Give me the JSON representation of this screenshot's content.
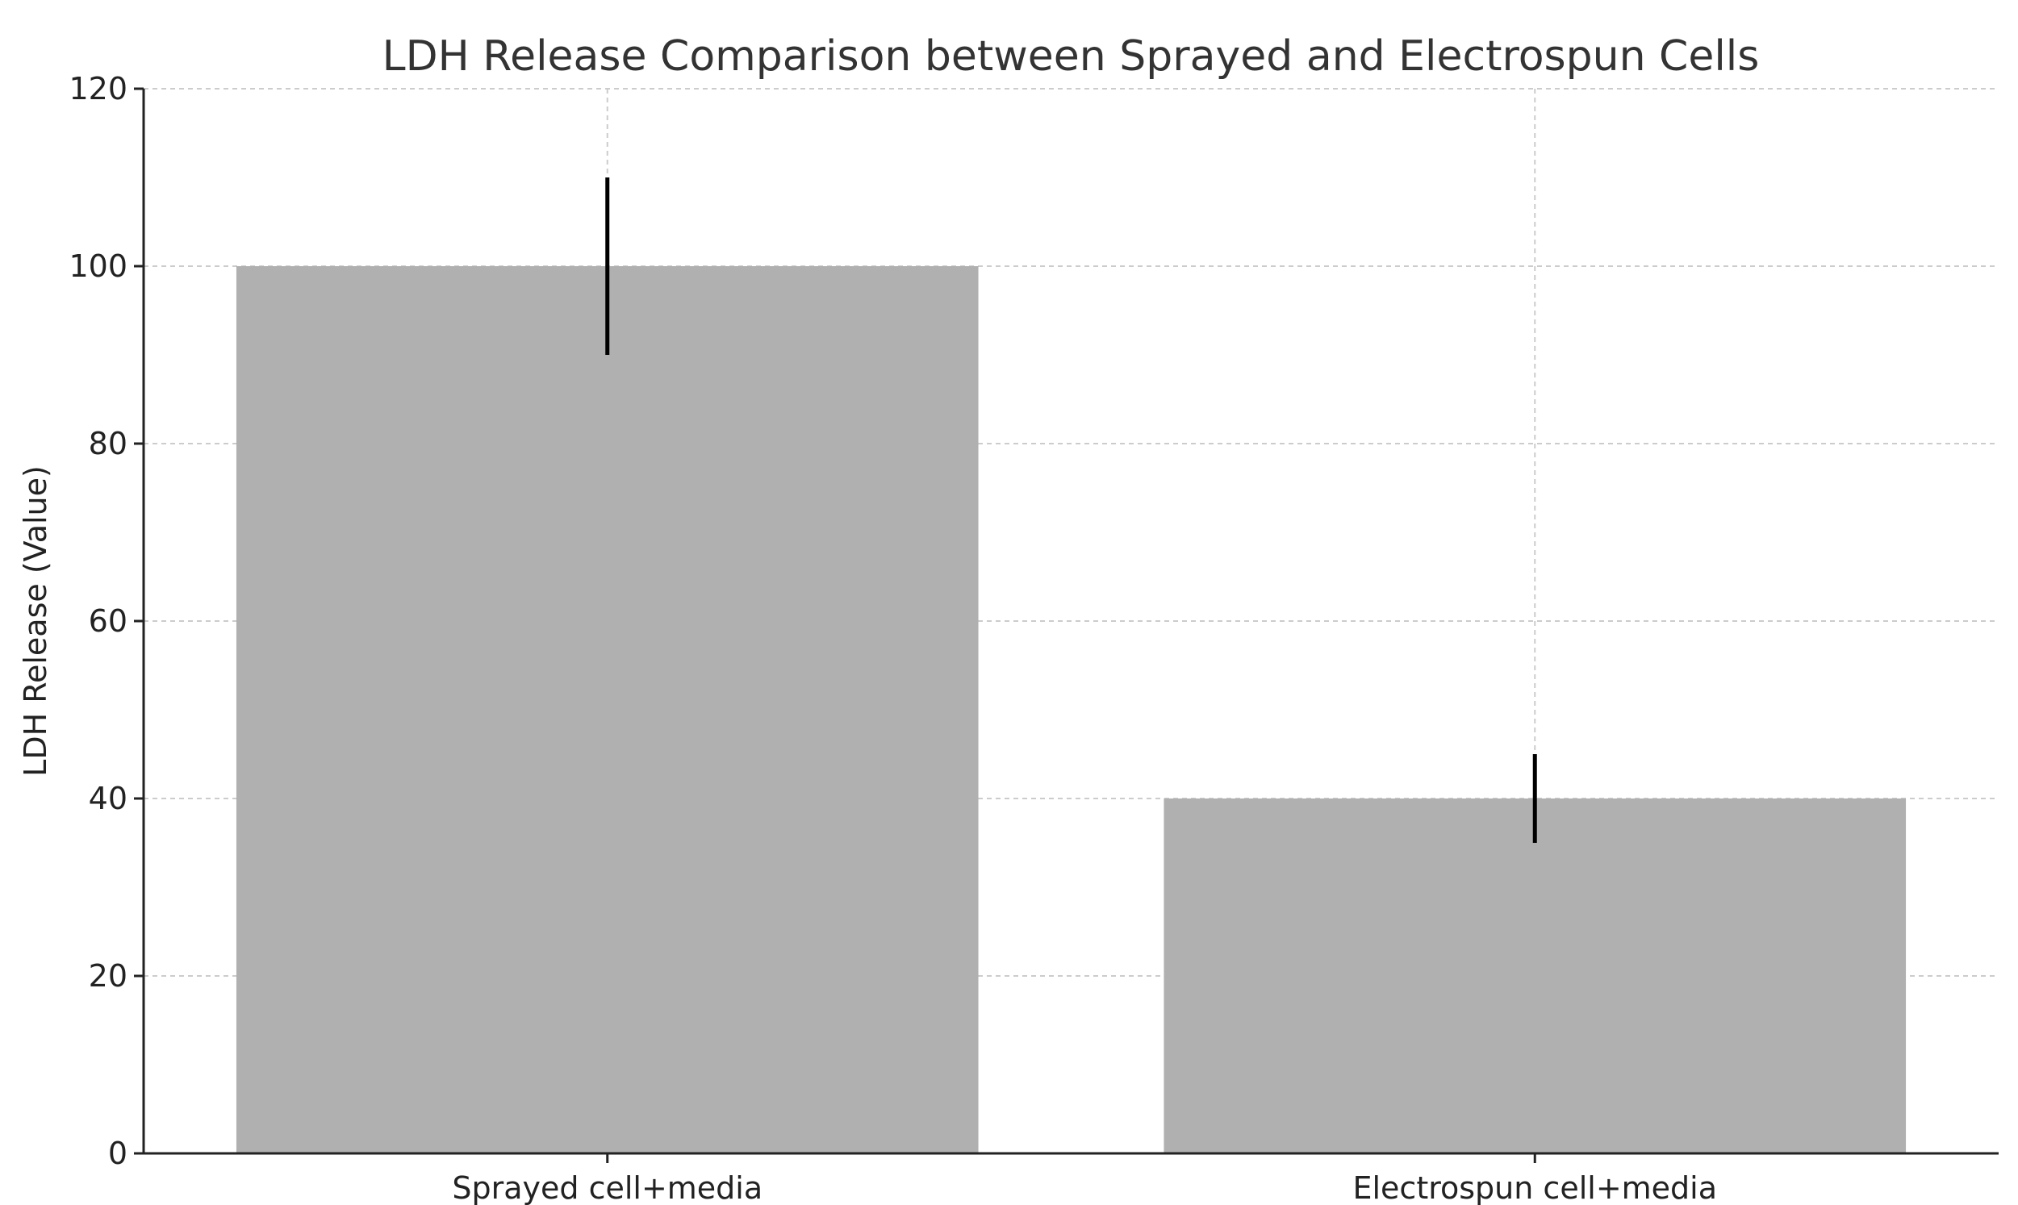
{
  "chart_data": {
    "type": "bar",
    "title": "LDH Release Comparison between Sprayed and Electrospun Cells",
    "xlabel": "",
    "ylabel": "LDH Release (Value)",
    "categories": [
      "Sprayed cell+media",
      "Electrospun cell+media"
    ],
    "values": [
      100,
      40
    ],
    "errors": [
      10,
      5
    ],
    "ylim": [
      0,
      120
    ],
    "yticks": [
      0,
      20,
      40,
      60,
      80,
      100,
      120
    ],
    "bar_color": "#b0b0b0",
    "error_color": "#000000",
    "grid": true
  }
}
